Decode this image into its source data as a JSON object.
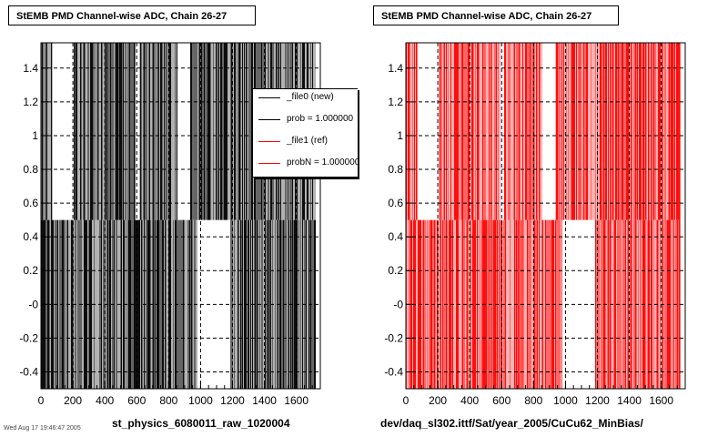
{
  "panels": [
    {
      "title": "StEMB PMD Channel-wise ADC, Chain 26-27",
      "subtitle": "st_physics_6080011_raw_1020004",
      "color": "#000000",
      "legend": [
        "_file0 (new)",
        "prob = 1.000000",
        "_file1 (ref)",
        "probN = 1.000000"
      ]
    },
    {
      "title": "StEMB PMD Channel-wise ADC, Chain 26-27",
      "subtitle": "dev/daq_sl302.ittf/Sat/year_2005/CuCu62_MinBias/",
      "color": "#ff0000"
    }
  ],
  "legend_colors": [
    "#000000",
    "#000000",
    "#ff0000",
    "#ff0000"
  ],
  "footer": "Wed Aug 17 19:46:47 2005",
  "chart_data": [
    {
      "type": "scatter",
      "title": "StEMB PMD Channel-wise ADC, Chain 26-27",
      "xlabel": "st_physics_6080011_raw_1020004",
      "ylabel": "",
      "xlim": [
        0,
        1750
      ],
      "ylim": [
        -0.5,
        1.55
      ],
      "x_ticks": [
        "0",
        "200",
        "400",
        "600",
        "800",
        "1000",
        "1200",
        "1400",
        "1600"
      ],
      "y_ticks": [
        "-0.4",
        "-0.2",
        "-0",
        "0.2",
        "0.4",
        "0.6",
        "0.8",
        "1",
        "1.2",
        "1.4"
      ],
      "grid": true,
      "color": "#000000",
      "upper_band": {
        "y_range": [
          0.5,
          1.55
        ],
        "empty_x_ranges": [
          [
            70,
            200
          ],
          [
            590,
            610
          ],
          [
            850,
            930
          ]
        ]
      },
      "lower_band": {
        "y_range": [
          -0.5,
          0.5
        ],
        "empty_x_ranges": [
          [
            980,
            1180
          ]
        ]
      }
    },
    {
      "type": "scatter",
      "title": "StEMB PMD Channel-wise ADC, Chain 26-27",
      "xlabel": "dev/daq_sl302.ittf/Sat/year_2005/CuCu62_MinBias/",
      "ylabel": "",
      "xlim": [
        0,
        1750
      ],
      "ylim": [
        -0.5,
        1.55
      ],
      "x_ticks": [
        "0",
        "200",
        "400",
        "600",
        "800",
        "1000",
        "1200",
        "1400",
        "1600"
      ],
      "y_ticks": [
        "-0.4",
        "-0.2",
        "-0",
        "0.2",
        "0.4",
        "0.6",
        "0.8",
        "1",
        "1.2",
        "1.4"
      ],
      "grid": true,
      "color": "#ff0000",
      "upper_band": {
        "y_range": [
          0.5,
          1.55
        ],
        "empty_x_ranges": [
          [
            70,
            200
          ],
          [
            590,
            610
          ],
          [
            850,
            930
          ]
        ]
      },
      "lower_band": {
        "y_range": [
          -0.5,
          0.5
        ],
        "empty_x_ranges": [
          [
            980,
            1180
          ]
        ]
      }
    }
  ]
}
